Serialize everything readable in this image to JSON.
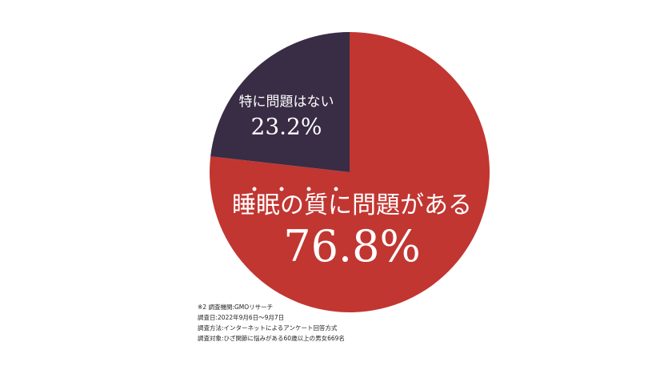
{
  "chart_data": {
    "type": "pie",
    "categories": [
      "睡眠の質に問題がある",
      "特に問題はない"
    ],
    "values": [
      76.8,
      23.2
    ],
    "value_labels": [
      "76.8%",
      "23.2%"
    ],
    "colors": [
      "#c13631",
      "#392c45"
    ],
    "notes": [
      "※2 調査機関:GMOリサーチ",
      "調査日:2022年9月6日〜9月7日",
      "調査方法:インターネットによるアンケート回答方式",
      "調査対象:ひざ関節に悩みがある60歳以上の男女669名"
    ]
  }
}
